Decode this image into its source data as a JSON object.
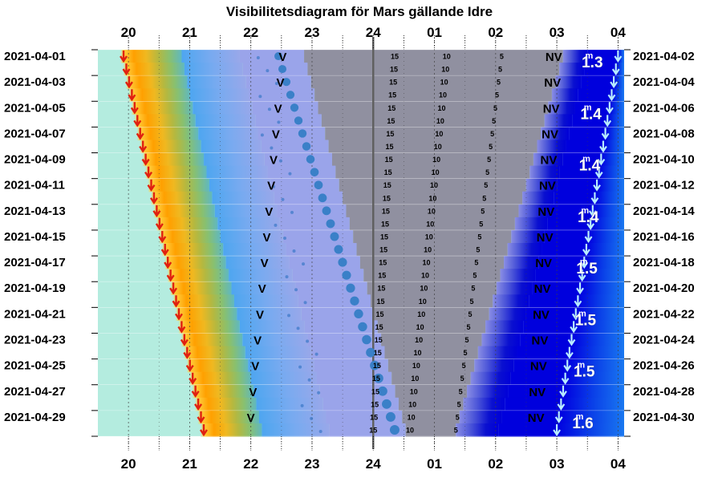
{
  "chart_data": {
    "type": "visibility-diagram",
    "title": "Visibilitetsdiagram för Mars gällande Idre",
    "hour_ticks": [
      "20",
      "21",
      "22",
      "23",
      "24",
      "01",
      "02",
      "03",
      "04"
    ],
    "hour_range": [
      19.5,
      28.1
    ],
    "dates_left": [
      "2021-04-01",
      "2021-04-03",
      "2021-04-05",
      "2021-04-07",
      "2021-04-09",
      "2021-04-11",
      "2021-04-13",
      "2021-04-15",
      "2021-04-17",
      "2021-04-19",
      "2021-04-21",
      "2021-04-23",
      "2021-04-25",
      "2021-04-27",
      "2021-04-29"
    ],
    "dates_right": [
      "2021-04-02",
      "2021-04-04",
      "2021-04-06",
      "2021-04-08",
      "2021-04-10",
      "2021-04-12",
      "2021-04-14",
      "2021-04-16",
      "2021-04-18",
      "2021-04-20",
      "2021-04-22",
      "2021-04-24",
      "2021-04-26",
      "2021-04-28",
      "2021-04-30"
    ],
    "day_count": 30,
    "altitude_labels": [
      "15",
      "10",
      "5"
    ],
    "v_label": "V",
    "nv_label": "NV",
    "sunset_start": 19.92,
    "sunset_end": 21.23,
    "sunrise_start": 28.0,
    "sunrise_end": 27.0,
    "mars_transit_start": 22.45,
    "mars_transit_end": 24.35,
    "magnitudes": [
      {
        "day": 1,
        "value": "1.3"
      },
      {
        "day": 5,
        "value": "1.4"
      },
      {
        "day": 9,
        "value": "1.4"
      },
      {
        "day": 13,
        "value": "1.4"
      },
      {
        "day": 17,
        "value": "1.5"
      },
      {
        "day": 21,
        "value": "1.5"
      },
      {
        "day": 25,
        "value": "1.5"
      },
      {
        "day": 29,
        "value": "1.6"
      }
    ],
    "magnitude_unit": "m",
    "colors": {
      "day": "#b4ecdf",
      "twilight_deep": "#0000dd",
      "night": "#9090a0",
      "sunset_arrow": "#e02010",
      "sunrise_arrow": "#b8ecff",
      "mars": "#3a80c8",
      "midnight_line": "#606060"
    }
  }
}
